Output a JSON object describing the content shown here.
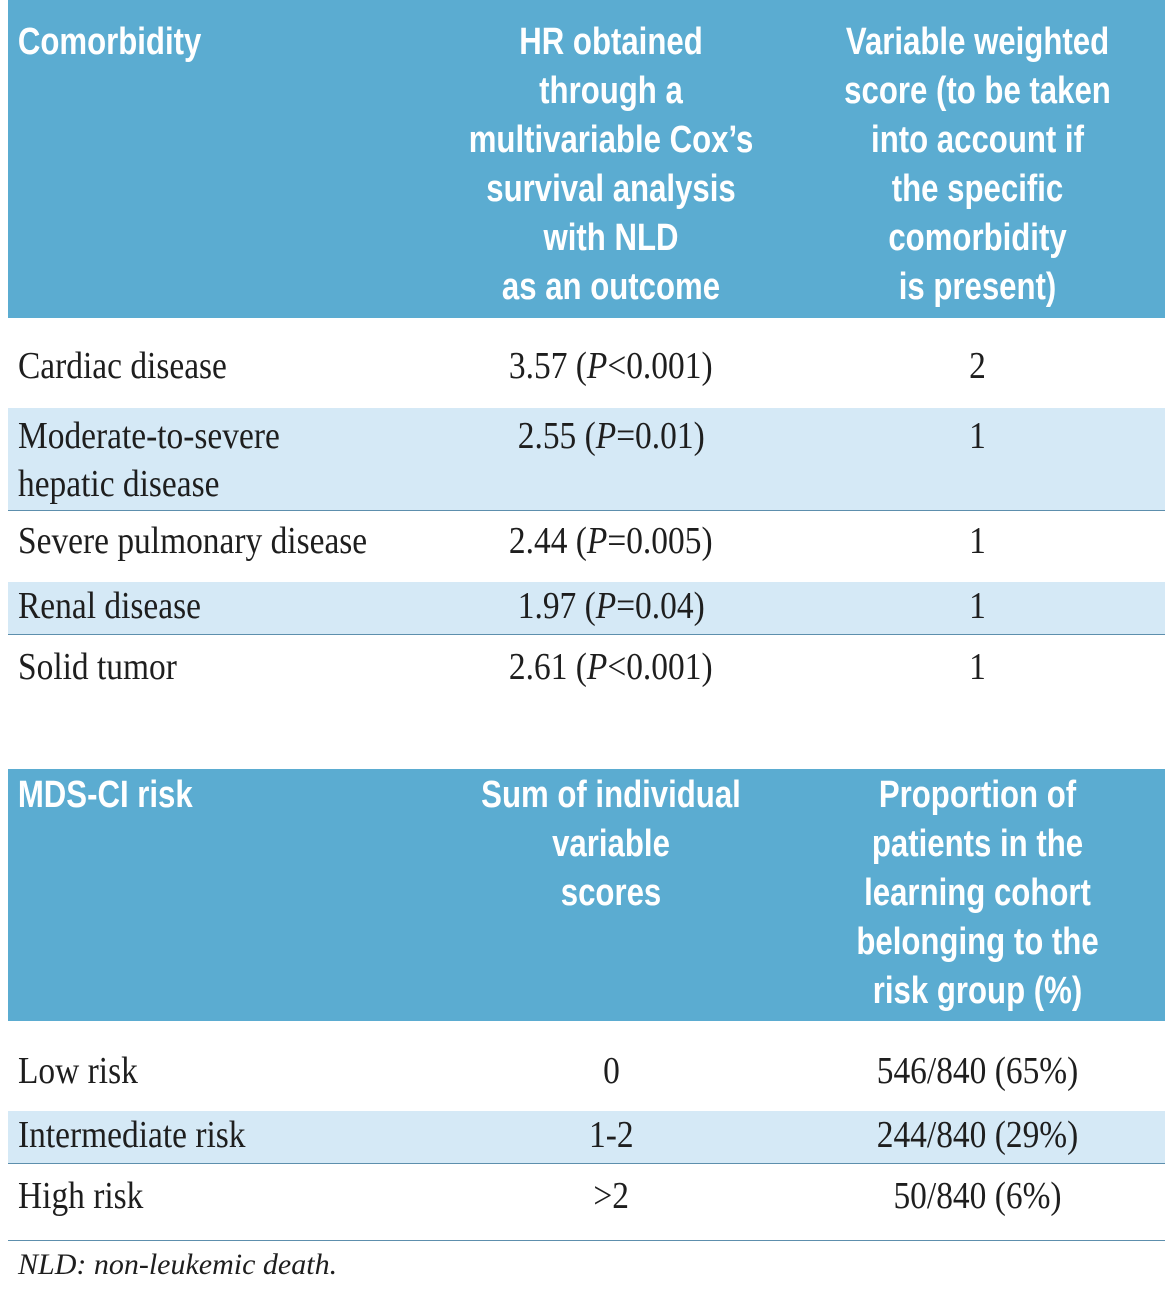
{
  "table1": {
    "headers": [
      "Comorbidity",
      [
        "HR obtained through a",
        "multivariable Cox’s",
        "survival analysis",
        "with NLD",
        "as an outcome"
      ],
      [
        "Variable weighted",
        "score (to be taken",
        "into account if",
        "the specific",
        "comorbidity",
        "is present)"
      ]
    ],
    "rows": [
      {
        "name": [
          "Cardiac disease"
        ],
        "hr": "3.57",
        "p_label": "P",
        "p_rest": "<0.001",
        "score": "2"
      },
      {
        "name": [
          "Moderate-to-severe",
          "hepatic disease"
        ],
        "hr": "2.55",
        "p_label": "P",
        "p_rest": "=0.01",
        "score": "1"
      },
      {
        "name": [
          "Severe pulmonary disease"
        ],
        "hr": "2.44",
        "p_label": "P",
        "p_rest": "=0.005",
        "score": "1"
      },
      {
        "name": [
          "Renal disease"
        ],
        "hr": "1.97",
        "p_label": "P",
        "p_rest": "=0.04",
        "score": "1"
      },
      {
        "name": [
          "Solid tumor"
        ],
        "hr": "2.61",
        "p_label": "P",
        "p_rest": "<0.001",
        "score": "1"
      }
    ]
  },
  "table2": {
    "headers": [
      "MDS-CI risk",
      [
        "Sum of individual variable",
        "scores"
      ],
      [
        "Proportion of",
        "patients in the",
        "learning cohort",
        "belonging to the",
        "risk group (%)"
      ]
    ],
    "rows": [
      {
        "risk": "Low risk",
        "sum": "0",
        "proportion": "546/840 (65%)"
      },
      {
        "risk": "Intermediate risk",
        "sum": "1-2",
        "proportion": "244/840 (29%)"
      },
      {
        "risk": "High risk",
        "sum": ">2",
        "proportion": "50/840 (6%)"
      }
    ]
  },
  "footnote": "NLD: non-leukemic death.",
  "colors": {
    "header_bg": "#5bacd1",
    "shaded_row": "#d5e9f6",
    "rule": "#5d8fad"
  }
}
